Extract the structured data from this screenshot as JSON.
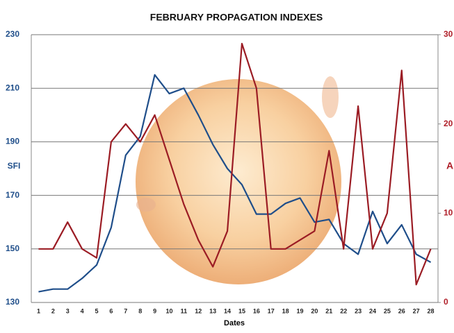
{
  "chart_data": {
    "type": "line",
    "title": "FEBRUARY PROPAGATION  INDEXES",
    "x_label": "Dates",
    "y_label": "SFI",
    "y2_label": "A",
    "categories": [
      "1",
      "2",
      "3",
      "4",
      "5",
      "6",
      "7",
      "8",
      "9",
      "10",
      "11",
      "12",
      "13",
      "14",
      "15",
      "16",
      "17",
      "18",
      "19",
      "20",
      "21",
      "22",
      "23",
      "24",
      "25",
      "26",
      "27",
      "28"
    ],
    "ylim": [
      130,
      230
    ],
    "yticks": [
      130,
      150,
      170,
      190,
      210,
      230
    ],
    "y2lim": [
      0,
      30
    ],
    "y2ticks": [
      0,
      10,
      20,
      30
    ],
    "grid": true,
    "series": [
      {
        "name": "SFI",
        "color": "#1f4e8a",
        "values": [
          134,
          135,
          135,
          139,
          144,
          158,
          185,
          192,
          215,
          208,
          210,
          200,
          189,
          180,
          174,
          163,
          163,
          167,
          169,
          160,
          161,
          152,
          148,
          164,
          152,
          159,
          148,
          145
        ]
      },
      {
        "name": "A",
        "color": "#9b1c24",
        "axis": "y2",
        "values": [
          6,
          6,
          9,
          6,
          5,
          18,
          20,
          18,
          21,
          16,
          11,
          7,
          4,
          8,
          29,
          24,
          6,
          6,
          7,
          8,
          17,
          6,
          22,
          6,
          10,
          26,
          2,
          6
        ]
      }
    ]
  }
}
